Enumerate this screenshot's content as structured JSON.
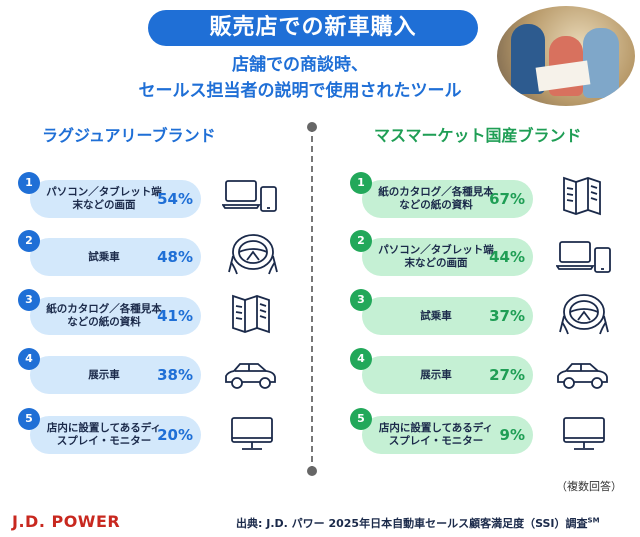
{
  "title": "販売店での新車購入",
  "subtitle_line1": "店舗での商談時、",
  "subtitle_line2": "セールス担当者の説明で使用されたツール",
  "luxury": {
    "heading": "ラグジュアリーブランド",
    "items": [
      {
        "num": "1",
        "label": "パソコン／タブレット端末などの画面",
        "pct": "54%",
        "icon": "laptop-tablet-icon"
      },
      {
        "num": "2",
        "label": "試乗車",
        "pct": "48%",
        "icon": "steering-wheel-icon"
      },
      {
        "num": "3",
        "label": "紙のカタログ／各種見本などの紙の資料",
        "pct": "41%",
        "icon": "brochure-icon"
      },
      {
        "num": "4",
        "label": "展示車",
        "pct": "38%",
        "icon": "car-icon"
      },
      {
        "num": "5",
        "label": "店内に設置してあるディスプレイ・モニター",
        "pct": "20%",
        "icon": "monitor-icon"
      }
    ]
  },
  "mass": {
    "heading": "マスマーケット国産ブランド",
    "items": [
      {
        "num": "1",
        "label": "紙のカタログ／各種見本などの紙の資料",
        "pct": "67%",
        "icon": "brochure-icon"
      },
      {
        "num": "2",
        "label": "パソコン／タブレット端末などの画面",
        "pct": "44%",
        "icon": "laptop-tablet-icon"
      },
      {
        "num": "3",
        "label": "試乗車",
        "pct": "37%",
        "icon": "steering-wheel-icon"
      },
      {
        "num": "4",
        "label": "展示車",
        "pct": "27%",
        "icon": "car-icon"
      },
      {
        "num": "5",
        "label": "店内に設置してあるディスプレイ・モニター",
        "pct": "9%",
        "icon": "monitor-icon"
      }
    ]
  },
  "note": "（複数回答）",
  "logo": "J.D. POWER",
  "source": "出典: J.D. パワー 2025年日本自動車セールス顧客満足度（SSI）調査",
  "source_sup": "SM",
  "colors": {
    "blue": "#1f6fd6",
    "green": "#1f9e55",
    "light_blue": "#d3e8fb",
    "light_green": "#c5f0d4",
    "logo_red": "#c8281f"
  }
}
